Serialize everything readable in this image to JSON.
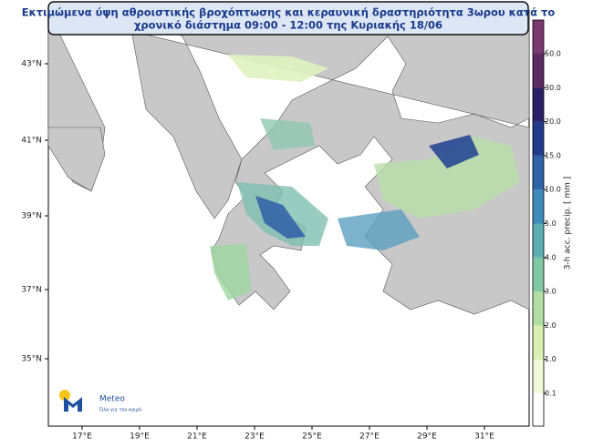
{
  "header": {
    "title_line1": "Εκτιμώμενα ύψη αθροιστικής βροχόπτωσης και κεραυνική δραστηριότητα 3ωρου κατά το",
    "title_line2": "χρονικό διάστημα 09:00 - 12:00 της Κυριακής 18/06"
  },
  "map": {
    "lat_labels": [
      "43°N",
      "41°N",
      "39°N",
      "37°N",
      "35°N"
    ],
    "lon_labels": [
      "17°E",
      "19°E",
      "21°E",
      "23°E",
      "25°E",
      "27°E",
      "29°E",
      "31°E"
    ]
  },
  "colorbar": {
    "label": "3-h acc. precip. [ mm ]",
    "ticks": [
      "0.1",
      "1.0",
      "2.0",
      "3.0",
      "4.0",
      "5.0",
      "10.0",
      "15.0",
      "20.0",
      "30.0",
      "50.0"
    ]
  },
  "logo": {
    "name": "Meteo",
    "tagline": "Όλα για τον καιρό"
  }
}
